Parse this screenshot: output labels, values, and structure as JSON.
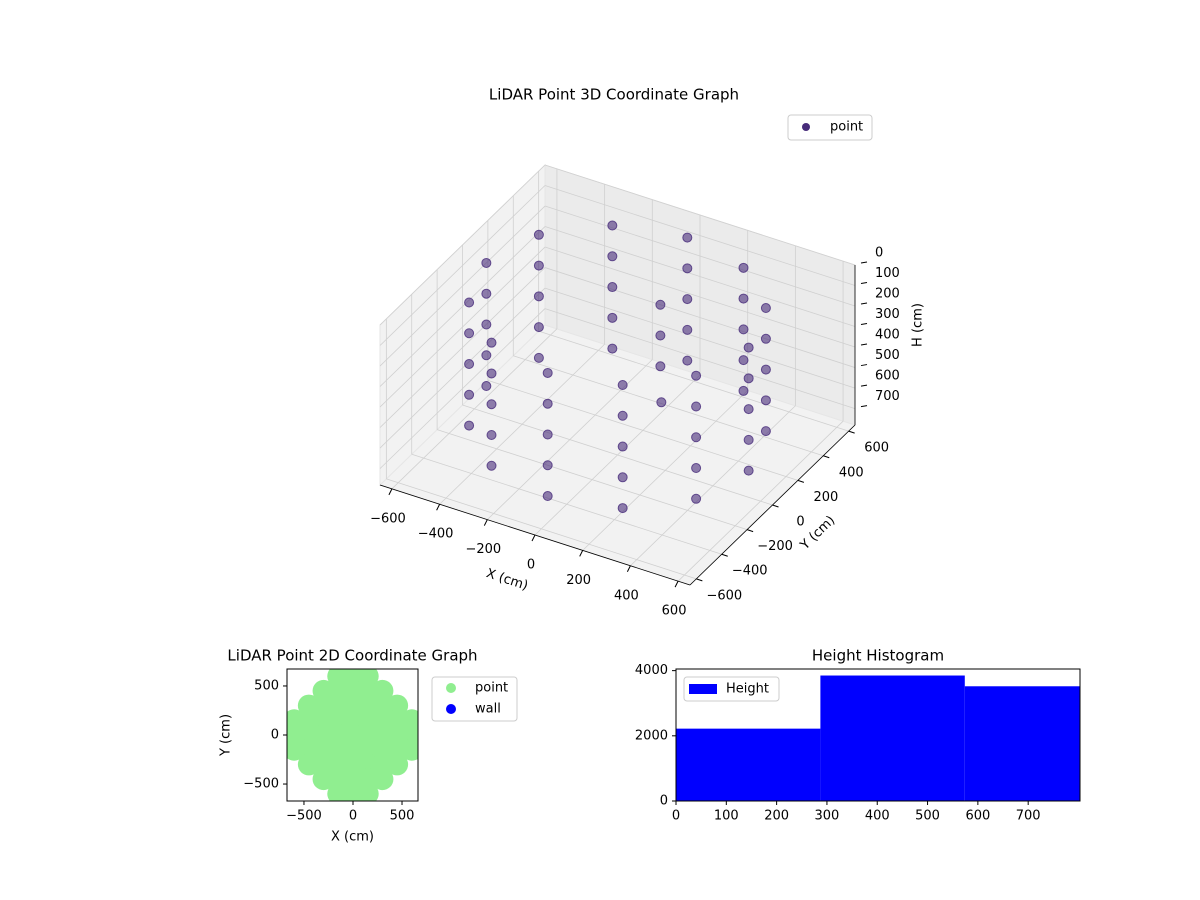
{
  "chart_data": [
    {
      "type": "scatter3d",
      "title": "LiDAR Point 3D Coordinate Graph",
      "xlabel": "X (cm)",
      "ylabel": "Y (cm)",
      "zlabel": "H (cm)",
      "xlim": [
        -650,
        650
      ],
      "ylim": [
        -650,
        650
      ],
      "zlim": [
        780,
        0
      ],
      "xticks": [
        {
          "value": -600,
          "label": "−600"
        },
        {
          "value": -400,
          "label": "−400"
        },
        {
          "value": -200,
          "label": "−200"
        },
        0,
        200,
        400,
        600
      ],
      "yticks": [
        {
          "value": -600,
          "label": "−600"
        },
        {
          "value": -400,
          "label": "−400"
        },
        {
          "value": -200,
          "label": "−200"
        },
        0,
        200,
        400,
        600
      ],
      "zticks": [
        0,
        100,
        200,
        300,
        400,
        500,
        600,
        700
      ],
      "grid": true,
      "legend": "upper right",
      "series": [
        {
          "name": "point",
          "color": "#472c7a",
          "x": [
            550,
            476,
            275,
            0,
            -275,
            -476,
            -550,
            -476,
            -275,
            0,
            275,
            476,
            550,
            476,
            275,
            0,
            -275,
            -476,
            -550,
            -476,
            -275,
            0,
            275,
            476,
            550,
            476,
            275,
            0,
            -275,
            -476,
            -550,
            -476,
            -275,
            0,
            275,
            476,
            550,
            476,
            275,
            0,
            -275,
            -476,
            -550,
            -476,
            -275,
            0,
            275,
            476,
            550,
            476,
            275,
            0,
            -275,
            -476,
            -550,
            -476,
            -275,
            0,
            275,
            476,
            100,
            100,
            100,
            120
          ],
          "y": [
            0,
            275,
            476,
            550,
            476,
            275,
            0,
            -275,
            -476,
            -550,
            -476,
            -275,
            0,
            275,
            476,
            550,
            476,
            275,
            0,
            -275,
            -476,
            -550,
            -476,
            -275,
            0,
            275,
            476,
            550,
            476,
            275,
            0,
            -275,
            -476,
            -550,
            -476,
            -275,
            0,
            275,
            476,
            550,
            476,
            275,
            0,
            -275,
            -476,
            -550,
            -476,
            -275,
            0,
            275,
            476,
            550,
            476,
            275,
            0,
            -275,
            -476,
            -550,
            -476,
            -275,
            150,
            150,
            150,
            120
          ],
          "z": [
            50,
            50,
            50,
            50,
            50,
            50,
            50,
            50,
            50,
            50,
            50,
            50,
            200,
            200,
            200,
            200,
            200,
            200,
            200,
            200,
            200,
            200,
            200,
            200,
            350,
            350,
            350,
            350,
            350,
            350,
            350,
            350,
            350,
            350,
            350,
            350,
            500,
            500,
            500,
            500,
            500,
            500,
            500,
            500,
            500,
            500,
            500,
            500,
            650,
            650,
            650,
            650,
            650,
            650,
            650,
            650,
            650,
            650,
            650,
            650,
            100,
            250,
            400,
            550
          ]
        }
      ]
    },
    {
      "type": "scatter",
      "title": "LiDAR Point 2D Coordinate Graph",
      "xlabel": "X (cm)",
      "ylabel": "Y (cm)",
      "xlim": [
        -673,
        663
      ],
      "ylim": [
        -673,
        673
      ],
      "xticks": [
        {
          "value": -500,
          "label": "−500"
        },
        0,
        500
      ],
      "yticks": [
        {
          "value": -500,
          "label": "−500"
        },
        0,
        500
      ],
      "legend": "outside upper right",
      "series": [
        {
          "name": "point",
          "color": "#90ee90",
          "x": [
            -150,
            0,
            150,
            -300,
            -150,
            0,
            150,
            300,
            -450,
            -300,
            -150,
            0,
            150,
            300,
            450,
            -600,
            -450,
            -300,
            -150,
            0,
            150,
            300,
            450,
            600,
            -600,
            -450,
            -300,
            -150,
            0,
            150,
            300,
            450,
            600,
            -600,
            -450,
            -300,
            -150,
            0,
            150,
            300,
            450,
            600,
            -450,
            -300,
            -150,
            0,
            150,
            300,
            450,
            -300,
            -150,
            0,
            150,
            300,
            -150,
            0,
            150
          ],
          "y": [
            600,
            600,
            600,
            450,
            450,
            450,
            450,
            450,
            300,
            300,
            300,
            300,
            300,
            300,
            300,
            150,
            150,
            150,
            150,
            150,
            150,
            150,
            150,
            150,
            0,
            0,
            0,
            0,
            0,
            0,
            0,
            0,
            0,
            -150,
            -150,
            -150,
            -150,
            -150,
            -150,
            -150,
            -150,
            -150,
            -300,
            -300,
            -300,
            -300,
            -300,
            -300,
            -300,
            -450,
            -450,
            -450,
            -450,
            -450,
            -600,
            -600,
            -600
          ]
        },
        {
          "name": "wall",
          "color": "#0000ff",
          "x": [],
          "y": []
        }
      ]
    },
    {
      "type": "histogram",
      "title": "Height Histogram",
      "bins": [
        0,
        287,
        574,
        861
      ],
      "counts": [
        2220,
        3850,
        3520
      ],
      "xlim": [
        0,
        803
      ],
      "ylim": [
        0,
        4050
      ],
      "xticks": [
        0,
        100,
        200,
        300,
        400,
        500,
        600,
        700
      ],
      "yticks": [
        0,
        2000,
        4000
      ],
      "legend": "upper left",
      "series": [
        {
          "name": "Height",
          "color": "#0000ff"
        }
      ]
    }
  ]
}
